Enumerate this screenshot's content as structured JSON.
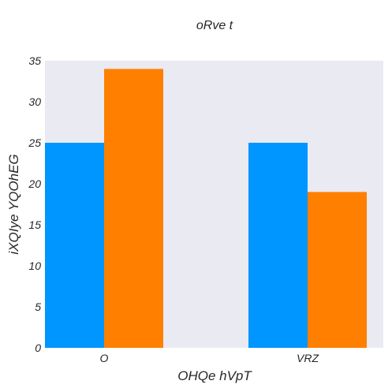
{
  "chart_data": {
    "type": "bar",
    "title": "oRve t",
    "xlabel": "OHQe  hVpT",
    "ylabel": "iXQIye YQOhEG",
    "categories": [
      "O",
      "VRZ"
    ],
    "series": [
      {
        "values": [
          25,
          25
        ]
      },
      {
        "values": [
          34,
          19
        ]
      }
    ],
    "ylim": [
      0,
      35
    ],
    "yticks": [
      0,
      5,
      10,
      15,
      20,
      25,
      30,
      35
    ],
    "grid": false,
    "plot_background": "#eaeaf2",
    "colors": [
      "#0096ff",
      "#ff7f00"
    ]
  }
}
